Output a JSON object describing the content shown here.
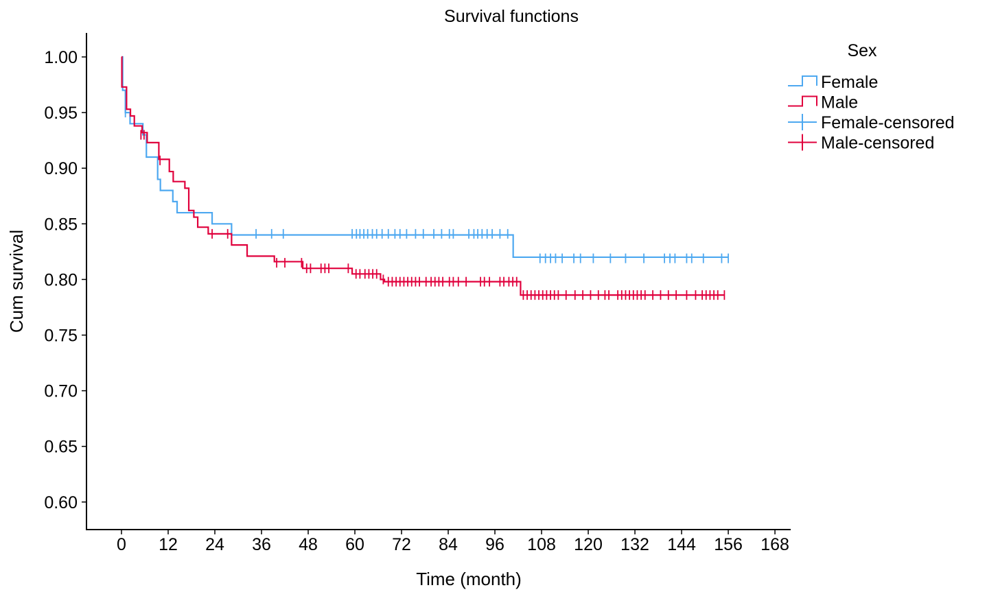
{
  "chart_data": {
    "type": "line",
    "title": "Survival functions",
    "xlabel": "Time (month)",
    "ylabel": "Cum survival",
    "xlim": [
      -4,
      172
    ],
    "ylim": [
      0.576,
      1.021
    ],
    "x_ticks": [
      0,
      12,
      24,
      36,
      48,
      60,
      72,
      84,
      96,
      108,
      120,
      132,
      144,
      156,
      168
    ],
    "y_ticks": [
      0.6,
      0.65,
      0.7,
      0.75,
      0.8,
      0.85,
      0.9,
      0.95,
      1.0
    ],
    "grid": false,
    "legend": {
      "title": "Sex",
      "position": "top-right",
      "entries": [
        {
          "label": "Female",
          "kind": "step",
          "color": "#4da8f0"
        },
        {
          "label": "Male",
          "kind": "step",
          "color": "#e0003c"
        },
        {
          "label": "Female-censored",
          "kind": "censor",
          "color": "#4da8f0"
        },
        {
          "label": "Male-censored",
          "kind": "censor",
          "color": "#e0003c"
        }
      ]
    },
    "series": [
      {
        "name": "Female",
        "color": "#4da8f0",
        "steps": [
          [
            0,
            1.0
          ],
          [
            0.3,
            0.97
          ],
          [
            1.0,
            0.95
          ],
          [
            2.2,
            0.94
          ],
          [
            5.5,
            0.93
          ],
          [
            6.4,
            0.91
          ],
          [
            9.3,
            0.89
          ],
          [
            10.0,
            0.88
          ],
          [
            13.2,
            0.87
          ],
          [
            14.3,
            0.86
          ],
          [
            23.3,
            0.85
          ],
          [
            28.3,
            0.84
          ],
          [
            100.7,
            0.82
          ],
          [
            156.0,
            0.82
          ]
        ],
        "censored": [
          [
            1.0,
            0.95
          ],
          [
            5.0,
            0.93
          ],
          [
            34.6,
            0.841
          ],
          [
            38.6,
            0.841
          ],
          [
            41.6,
            0.841
          ],
          [
            59.3,
            0.841
          ],
          [
            60.4,
            0.841
          ],
          [
            61.3,
            0.841
          ],
          [
            62.3,
            0.841
          ],
          [
            63.3,
            0.841
          ],
          [
            64.5,
            0.841
          ],
          [
            65.6,
            0.841
          ],
          [
            67.0,
            0.841
          ],
          [
            68.6,
            0.841
          ],
          [
            70.3,
            0.841
          ],
          [
            71.6,
            0.841
          ],
          [
            73.3,
            0.841
          ],
          [
            75.6,
            0.841
          ],
          [
            77.6,
            0.841
          ],
          [
            80.3,
            0.841
          ],
          [
            82.3,
            0.841
          ],
          [
            84.3,
            0.841
          ],
          [
            85.3,
            0.841
          ],
          [
            89.3,
            0.841
          ],
          [
            90.6,
            0.841
          ],
          [
            91.6,
            0.841
          ],
          [
            92.7,
            0.841
          ],
          [
            94.0,
            0.841
          ],
          [
            95.3,
            0.841
          ],
          [
            97.3,
            0.841
          ],
          [
            99.3,
            0.841
          ],
          [
            107.6,
            0.819
          ],
          [
            109.0,
            0.819
          ],
          [
            110.3,
            0.819
          ],
          [
            111.6,
            0.819
          ],
          [
            113.3,
            0.819
          ],
          [
            116.3,
            0.819
          ],
          [
            118.0,
            0.819
          ],
          [
            121.3,
            0.819
          ],
          [
            125.7,
            0.819
          ],
          [
            129.6,
            0.819
          ],
          [
            134.3,
            0.819
          ],
          [
            139.6,
            0.819
          ],
          [
            141.0,
            0.819
          ],
          [
            142.3,
            0.819
          ],
          [
            145.3,
            0.819
          ],
          [
            146.6,
            0.819
          ],
          [
            149.6,
            0.819
          ],
          [
            154.3,
            0.819
          ],
          [
            156.0,
            0.819
          ]
        ]
      },
      {
        "name": "Male",
        "color": "#e0003c",
        "steps": [
          [
            0,
            1.0
          ],
          [
            0.1,
            0.973
          ],
          [
            1.3,
            0.953
          ],
          [
            2.3,
            0.947
          ],
          [
            3.3,
            0.938
          ],
          [
            5.3,
            0.932
          ],
          [
            6.6,
            0.923
          ],
          [
            9.6,
            0.908
          ],
          [
            12.3,
            0.897
          ],
          [
            13.3,
            0.888
          ],
          [
            16.3,
            0.882
          ],
          [
            17.3,
            0.862
          ],
          [
            18.6,
            0.856
          ],
          [
            19.6,
            0.847
          ],
          [
            22.3,
            0.841
          ],
          [
            28.3,
            0.831
          ],
          [
            32.3,
            0.821
          ],
          [
            39.3,
            0.816
          ],
          [
            46.6,
            0.81
          ],
          [
            59.3,
            0.805
          ],
          [
            66.6,
            0.8
          ],
          [
            67.6,
            0.798
          ],
          [
            102.6,
            0.786
          ],
          [
            155.0,
            0.786
          ]
        ],
        "censored": [
          [
            5.0,
            0.93
          ],
          [
            5.8,
            0.93
          ],
          [
            9.9,
            0.907
          ],
          [
            23.3,
            0.841
          ],
          [
            27.3,
            0.841
          ],
          [
            39.9,
            0.815
          ],
          [
            42.0,
            0.815
          ],
          [
            46.3,
            0.815
          ],
          [
            47.6,
            0.81
          ],
          [
            48.6,
            0.81
          ],
          [
            51.3,
            0.81
          ],
          [
            52.3,
            0.81
          ],
          [
            53.3,
            0.81
          ],
          [
            58.3,
            0.81
          ],
          [
            60.3,
            0.805
          ],
          [
            61.3,
            0.805
          ],
          [
            62.6,
            0.805
          ],
          [
            63.6,
            0.805
          ],
          [
            64.6,
            0.805
          ],
          [
            65.6,
            0.805
          ],
          [
            67.3,
            0.8
          ],
          [
            68.6,
            0.798
          ],
          [
            69.6,
            0.798
          ],
          [
            70.6,
            0.798
          ],
          [
            71.6,
            0.798
          ],
          [
            72.6,
            0.798
          ],
          [
            73.6,
            0.798
          ],
          [
            74.6,
            0.798
          ],
          [
            75.6,
            0.798
          ],
          [
            76.6,
            0.798
          ],
          [
            78.3,
            0.798
          ],
          [
            79.6,
            0.798
          ],
          [
            80.6,
            0.798
          ],
          [
            81.6,
            0.798
          ],
          [
            82.6,
            0.798
          ],
          [
            84.3,
            0.798
          ],
          [
            85.3,
            0.798
          ],
          [
            86.6,
            0.798
          ],
          [
            88.6,
            0.798
          ],
          [
            92.3,
            0.798
          ],
          [
            93.3,
            0.798
          ],
          [
            94.6,
            0.798
          ],
          [
            97.3,
            0.798
          ],
          [
            98.3,
            0.798
          ],
          [
            99.6,
            0.798
          ],
          [
            100.6,
            0.798
          ],
          [
            101.6,
            0.798
          ],
          [
            103.3,
            0.786
          ],
          [
            104.3,
            0.786
          ],
          [
            105.3,
            0.786
          ],
          [
            106.3,
            0.786
          ],
          [
            107.3,
            0.786
          ],
          [
            108.3,
            0.786
          ],
          [
            109.3,
            0.786
          ],
          [
            110.3,
            0.786
          ],
          [
            111.3,
            0.786
          ],
          [
            112.3,
            0.786
          ],
          [
            114.3,
            0.786
          ],
          [
            116.6,
            0.786
          ],
          [
            118.6,
            0.786
          ],
          [
            120.6,
            0.786
          ],
          [
            122.6,
            0.786
          ],
          [
            124.3,
            0.786
          ],
          [
            125.3,
            0.786
          ],
          [
            127.6,
            0.786
          ],
          [
            128.6,
            0.786
          ],
          [
            129.6,
            0.786
          ],
          [
            130.6,
            0.786
          ],
          [
            131.6,
            0.786
          ],
          [
            132.6,
            0.786
          ],
          [
            133.6,
            0.786
          ],
          [
            134.6,
            0.786
          ],
          [
            136.6,
            0.786
          ],
          [
            138.6,
            0.786
          ],
          [
            140.6,
            0.786
          ],
          [
            142.6,
            0.786
          ],
          [
            145.3,
            0.786
          ],
          [
            147.6,
            0.786
          ],
          [
            149.3,
            0.786
          ],
          [
            150.3,
            0.786
          ],
          [
            151.3,
            0.786
          ],
          [
            152.3,
            0.786
          ],
          [
            153.3,
            0.786
          ],
          [
            155.0,
            0.786
          ]
        ]
      }
    ]
  }
}
